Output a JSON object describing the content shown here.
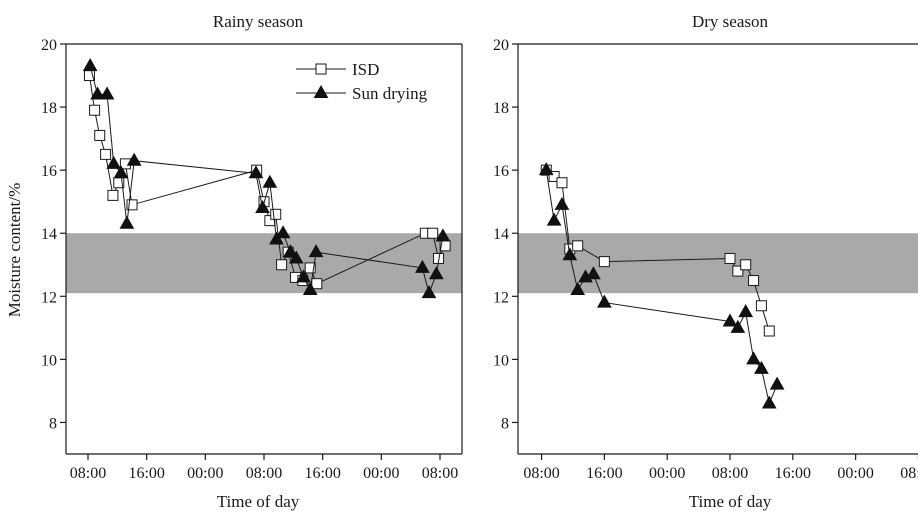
{
  "chart_data": {
    "type": "line",
    "ylabel": "Moisture content/%",
    "xlabel": "Time of day",
    "ylim": [
      7,
      20
    ],
    "yticks": [
      "8",
      "10",
      "12",
      "14",
      "16",
      "18",
      "20"
    ],
    "xticks": [
      "08:00",
      "16:00",
      "00:00",
      "08:00",
      "16:00",
      "00:00",
      "08:00"
    ],
    "xlim_hours": [
      5,
      59
    ],
    "band": [
      12.1,
      14.0
    ],
    "legend": [
      "ISD",
      "Sun drying"
    ],
    "legend_position": "top-right of left panel",
    "panels": [
      {
        "title": "Rainy season",
        "series": [
          {
            "name": "ISD",
            "marker": "open-square",
            "x": [
              8.2,
              8.9,
              9.6,
              10.4,
              11.4,
              12.2,
              13.1,
              14.0,
              31.0,
              32.0,
              32.8,
              33.6,
              34.4,
              35.3,
              36.3,
              37.3,
              38.3,
              39.2,
              54.0,
              55.0,
              55.8,
              56.7
            ],
            "y": [
              19.0,
              17.9,
              17.1,
              16.5,
              15.2,
              15.6,
              16.2,
              14.9,
              16.0,
              15.0,
              14.4,
              14.6,
              13.0,
              13.4,
              12.6,
              12.5,
              12.9,
              12.4,
              14.0,
              14.0,
              13.2,
              13.6
            ]
          },
          {
            "name": "Sun drying",
            "marker": "filled-triangle",
            "x": [
              8.3,
              9.3,
              10.6,
              11.5,
              12.5,
              13.3,
              14.3,
              30.9,
              31.8,
              32.8,
              33.7,
              34.6,
              35.6,
              36.4,
              37.4,
              38.3,
              39.1,
              53.6,
              54.5,
              55.5,
              56.4
            ],
            "y": [
              19.3,
              18.4,
              18.4,
              16.2,
              15.9,
              14.3,
              16.3,
              15.9,
              14.8,
              15.6,
              13.8,
              14.0,
              13.4,
              13.2,
              12.6,
              12.2,
              13.4,
              12.9,
              12.1,
              12.7,
              13.9
            ]
          }
        ]
      },
      {
        "title": "Dry season",
        "series": [
          {
            "name": "ISD",
            "marker": "open-square",
            "x": [
              8.6,
              9.6,
              10.6,
              11.6,
              12.6,
              16.0,
              32.0,
              33.0,
              34.0,
              35.0,
              36.0,
              37.0
            ],
            "y": [
              16.0,
              15.8,
              15.6,
              13.5,
              13.6,
              13.1,
              13.2,
              12.8,
              13.0,
              12.5,
              11.7,
              10.9
            ]
          },
          {
            "name": "Sun drying",
            "marker": "filled-triangle",
            "x": [
              8.6,
              9.6,
              10.6,
              11.6,
              12.6,
              13.6,
              14.6,
              16.0,
              32.0,
              33.0,
              34.0,
              35.0,
              36.0,
              37.0,
              38.0
            ],
            "y": [
              16.0,
              14.4,
              14.9,
              13.3,
              12.2,
              12.6,
              12.7,
              11.8,
              11.2,
              11.0,
              11.5,
              10.0,
              9.7,
              8.6,
              9.2
            ]
          }
        ]
      }
    ]
  }
}
